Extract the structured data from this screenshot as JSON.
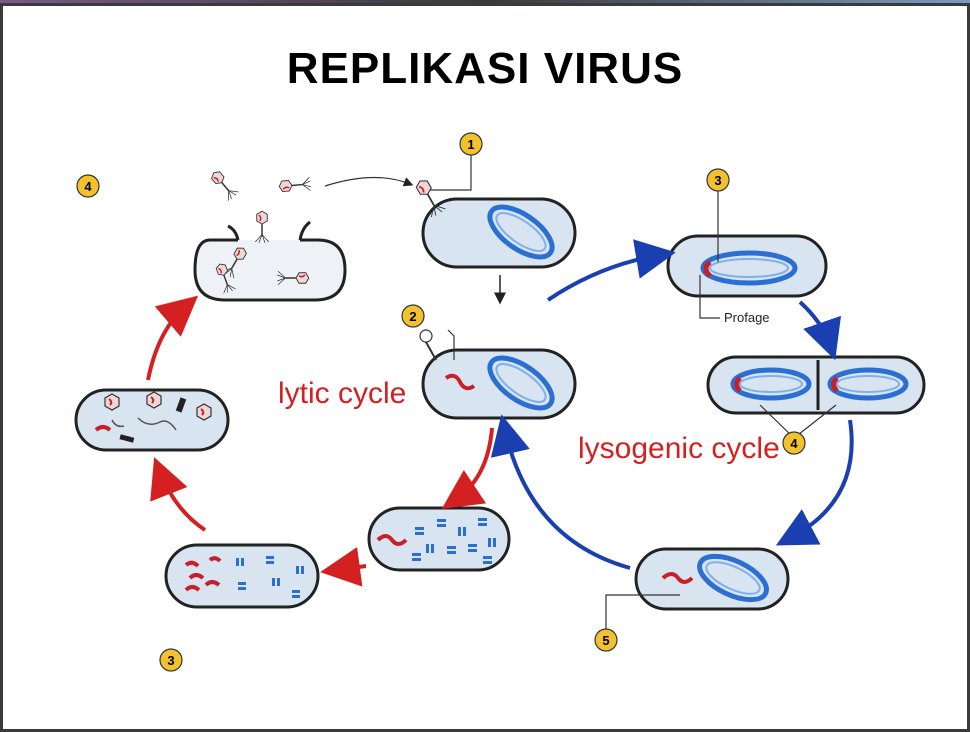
{
  "title": "REPLIKASI VIRUS",
  "labels": {
    "lytic": "lytic cycle",
    "lysogenic": "lysogenic cycle",
    "profage": "Profage"
  },
  "steps": {
    "s1": "1",
    "s2": "2",
    "s3_right": "3",
    "s4_right": "4",
    "s5": "5",
    "s3_left": "3",
    "s4_left": "4"
  },
  "colors": {
    "cell_fill": "#d8e4ef",
    "cell_stroke": "#222222",
    "dna_blue": "#2a6fd1",
    "viral_red": "#c8202a",
    "arrow_red": "#d42020",
    "arrow_blue": "#1a3fb0",
    "badge": "#f2c22e"
  }
}
